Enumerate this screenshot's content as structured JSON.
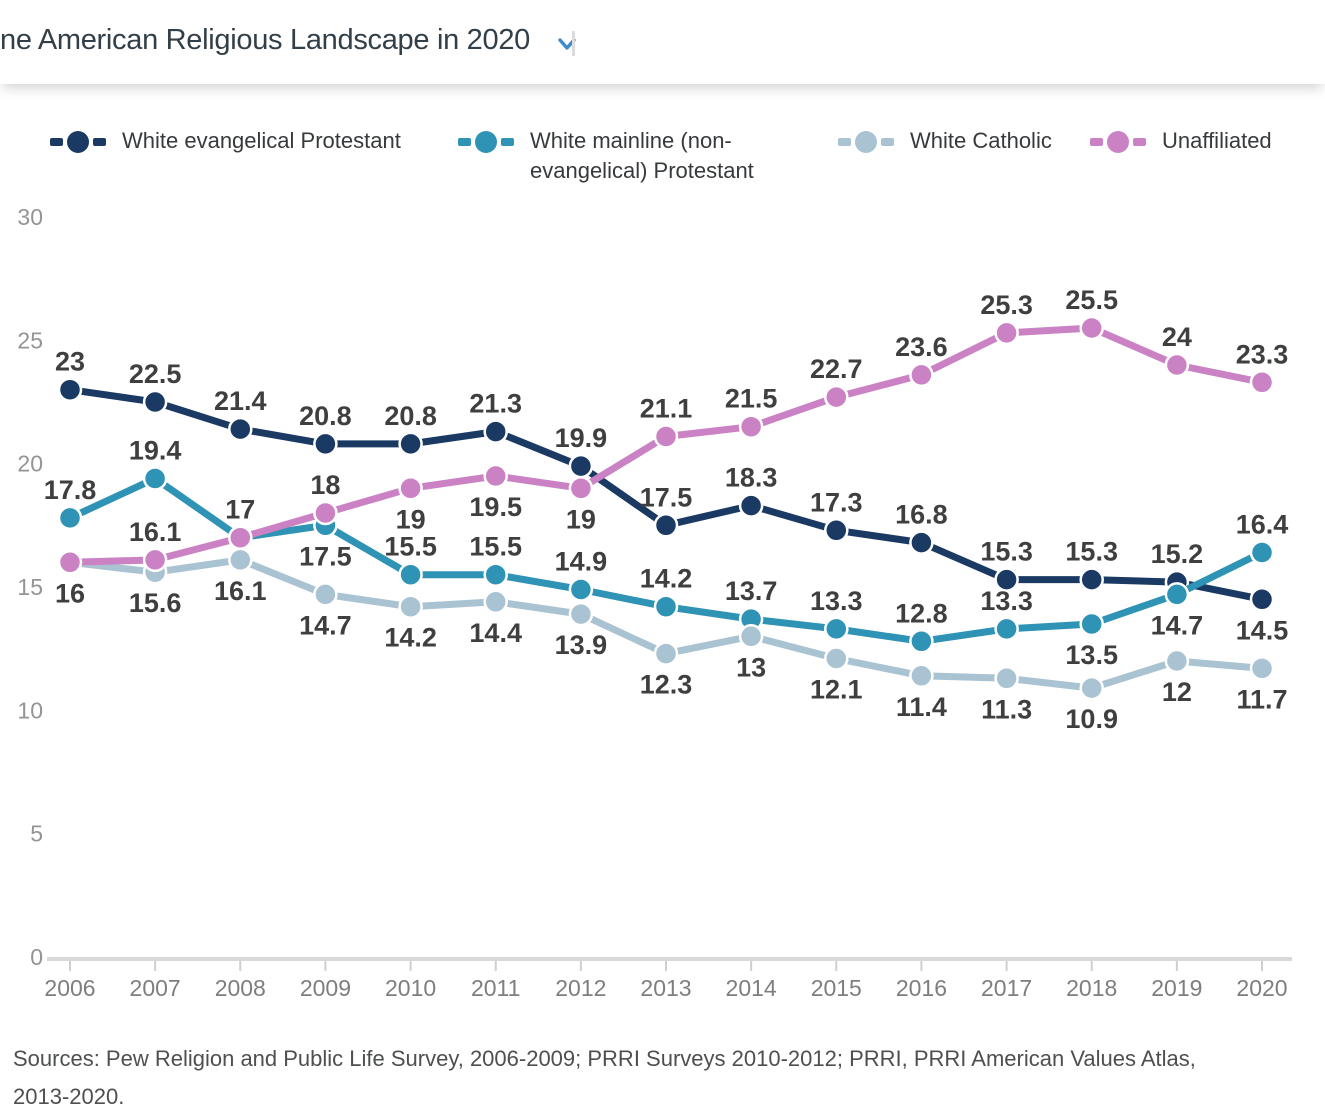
{
  "header": {
    "title": "ne American Religious Landscape in 2020",
    "chevron_icon": "chevron-down",
    "chevron_color": "#4089ca"
  },
  "cropped_heading_fragment": "y",
  "chart_data": {
    "type": "line",
    "title": "",
    "x": [
      2006,
      2007,
      2008,
      2009,
      2010,
      2011,
      2012,
      2013,
      2014,
      2015,
      2016,
      2017,
      2018,
      2019,
      2020
    ],
    "ylim": [
      0,
      30
    ],
    "yticks": [
      0,
      5,
      10,
      15,
      20,
      25,
      30
    ],
    "grid": false,
    "legend_position": "top",
    "marker_style": "dash-circle-dash",
    "series": [
      {
        "name": "White evangelical Protestant",
        "color": "#1b3a63",
        "values": [
          23,
          22.5,
          21.4,
          20.8,
          20.8,
          21.3,
          19.9,
          17.5,
          18.3,
          17.3,
          16.8,
          15.3,
          15.3,
          15.2,
          14.5
        ],
        "label_placement": [
          "a",
          "a",
          "a",
          "a",
          "a",
          "a",
          "a",
          "a",
          "a",
          "a",
          "a",
          "a",
          "a",
          "a",
          "b"
        ]
      },
      {
        "name": "White mainline (non-evangelical) Protestant",
        "color": "#2f93b5",
        "values": [
          17.8,
          19.4,
          17,
          17.5,
          15.5,
          15.5,
          14.9,
          14.2,
          13.7,
          13.3,
          12.8,
          13.3,
          13.5,
          14.7,
          16.4
        ],
        "label_placement": [
          "a",
          "a",
          "h",
          "b",
          "a",
          "a",
          "a",
          "a",
          "a",
          "a",
          "a",
          "a",
          "b",
          "b",
          "a"
        ]
      },
      {
        "name": "White Catholic",
        "color": "#a9c3d2",
        "values": [
          16,
          15.6,
          16.1,
          14.7,
          14.2,
          14.4,
          13.9,
          12.3,
          13,
          12.1,
          11.4,
          11.3,
          10.9,
          12,
          11.7
        ],
        "label_placement": [
          "b",
          "b",
          "b",
          "b",
          "b",
          "b",
          "b",
          "b",
          "b",
          "b",
          "b",
          "b",
          "b",
          "b",
          "b"
        ]
      },
      {
        "name": "Unaffiliated",
        "color": "#cb82c4",
        "values": [
          16,
          16.1,
          17,
          18,
          19,
          19.5,
          19,
          21.1,
          21.5,
          22.7,
          23.6,
          25.3,
          25.5,
          24,
          23.3
        ],
        "label_placement": [
          "h",
          "a",
          "a",
          "a",
          "b",
          "b",
          "b",
          "a",
          "a",
          "a",
          "a",
          "a",
          "a",
          "a",
          "a"
        ]
      }
    ],
    "label_color": "#3f3f3f",
    "axis_line_color": "#d9d9d9",
    "tick_color": "#cfcfcf"
  },
  "sources": {
    "line1": "Sources: Pew Religion and Public Life Survey, 2006-2009; PRRI Surveys 2010-2012; PRRI, PRRI American Values Atlas,",
    "line2": "2013-2020."
  }
}
